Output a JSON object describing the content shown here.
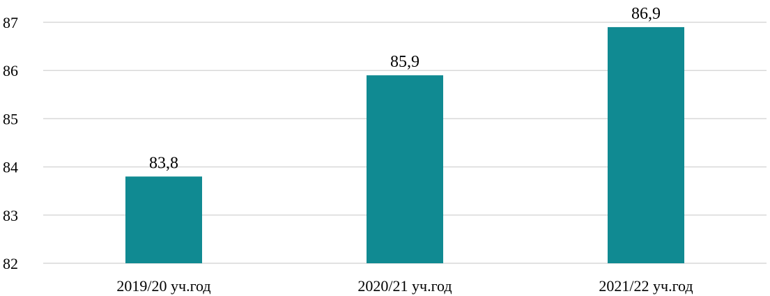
{
  "chart_data": {
    "type": "bar",
    "categories": [
      "2019/20 уч.год",
      "2020/21 уч.год",
      "2021/22 уч.год"
    ],
    "values": [
      83.8,
      85.9,
      86.9
    ],
    "value_labels": [
      "83,8",
      "85,9",
      "86,9"
    ],
    "ylim": [
      82,
      87
    ],
    "yticks": [
      82,
      83,
      84,
      85,
      86,
      87
    ],
    "ytick_labels": [
      "82",
      "83",
      "84",
      "85",
      "86",
      "87"
    ],
    "grid": true,
    "legend": "none",
    "bar_color": "#108a92",
    "title": "",
    "xlabel": "",
    "ylabel": ""
  }
}
